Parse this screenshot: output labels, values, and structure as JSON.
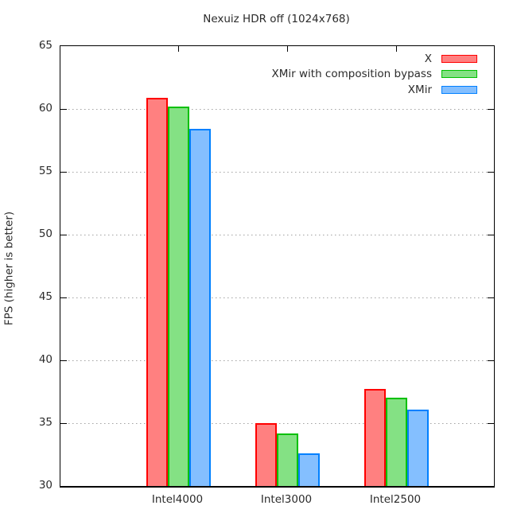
{
  "title": "Nexuiz HDR off (1024x768)",
  "ylabel": "FPS (higher is better)",
  "chart_data": {
    "type": "bar",
    "title": "Nexuiz HDR off (1024x768)",
    "categories": [
      "Intel4000",
      "Intel3000",
      "Intel2500"
    ],
    "series": [
      {
        "name": "X",
        "stroke": "#ff0000",
        "fill": "#ff8080",
        "values": [
          60.9,
          35.0,
          37.7
        ]
      },
      {
        "name": "XMir with composition bypass",
        "stroke": "#00c000",
        "fill": "#84e184",
        "values": [
          60.2,
          34.2,
          37.0
        ]
      },
      {
        "name": "XMir",
        "stroke": "#0080ff",
        "fill": "#84bfff",
        "values": [
          58.4,
          32.6,
          36.1
        ]
      }
    ],
    "xlabel": "",
    "ylabel": "FPS (higher is better)",
    "ylim": [
      30,
      65
    ],
    "yticks": [
      30,
      35,
      40,
      45,
      50,
      55,
      60,
      65
    ],
    "grid": true,
    "grid_color": "#a2a2a2",
    "legend_position": "top-right",
    "axis_color": "#000000",
    "text_color": "#2b2b2b",
    "background": "#ffffff"
  }
}
